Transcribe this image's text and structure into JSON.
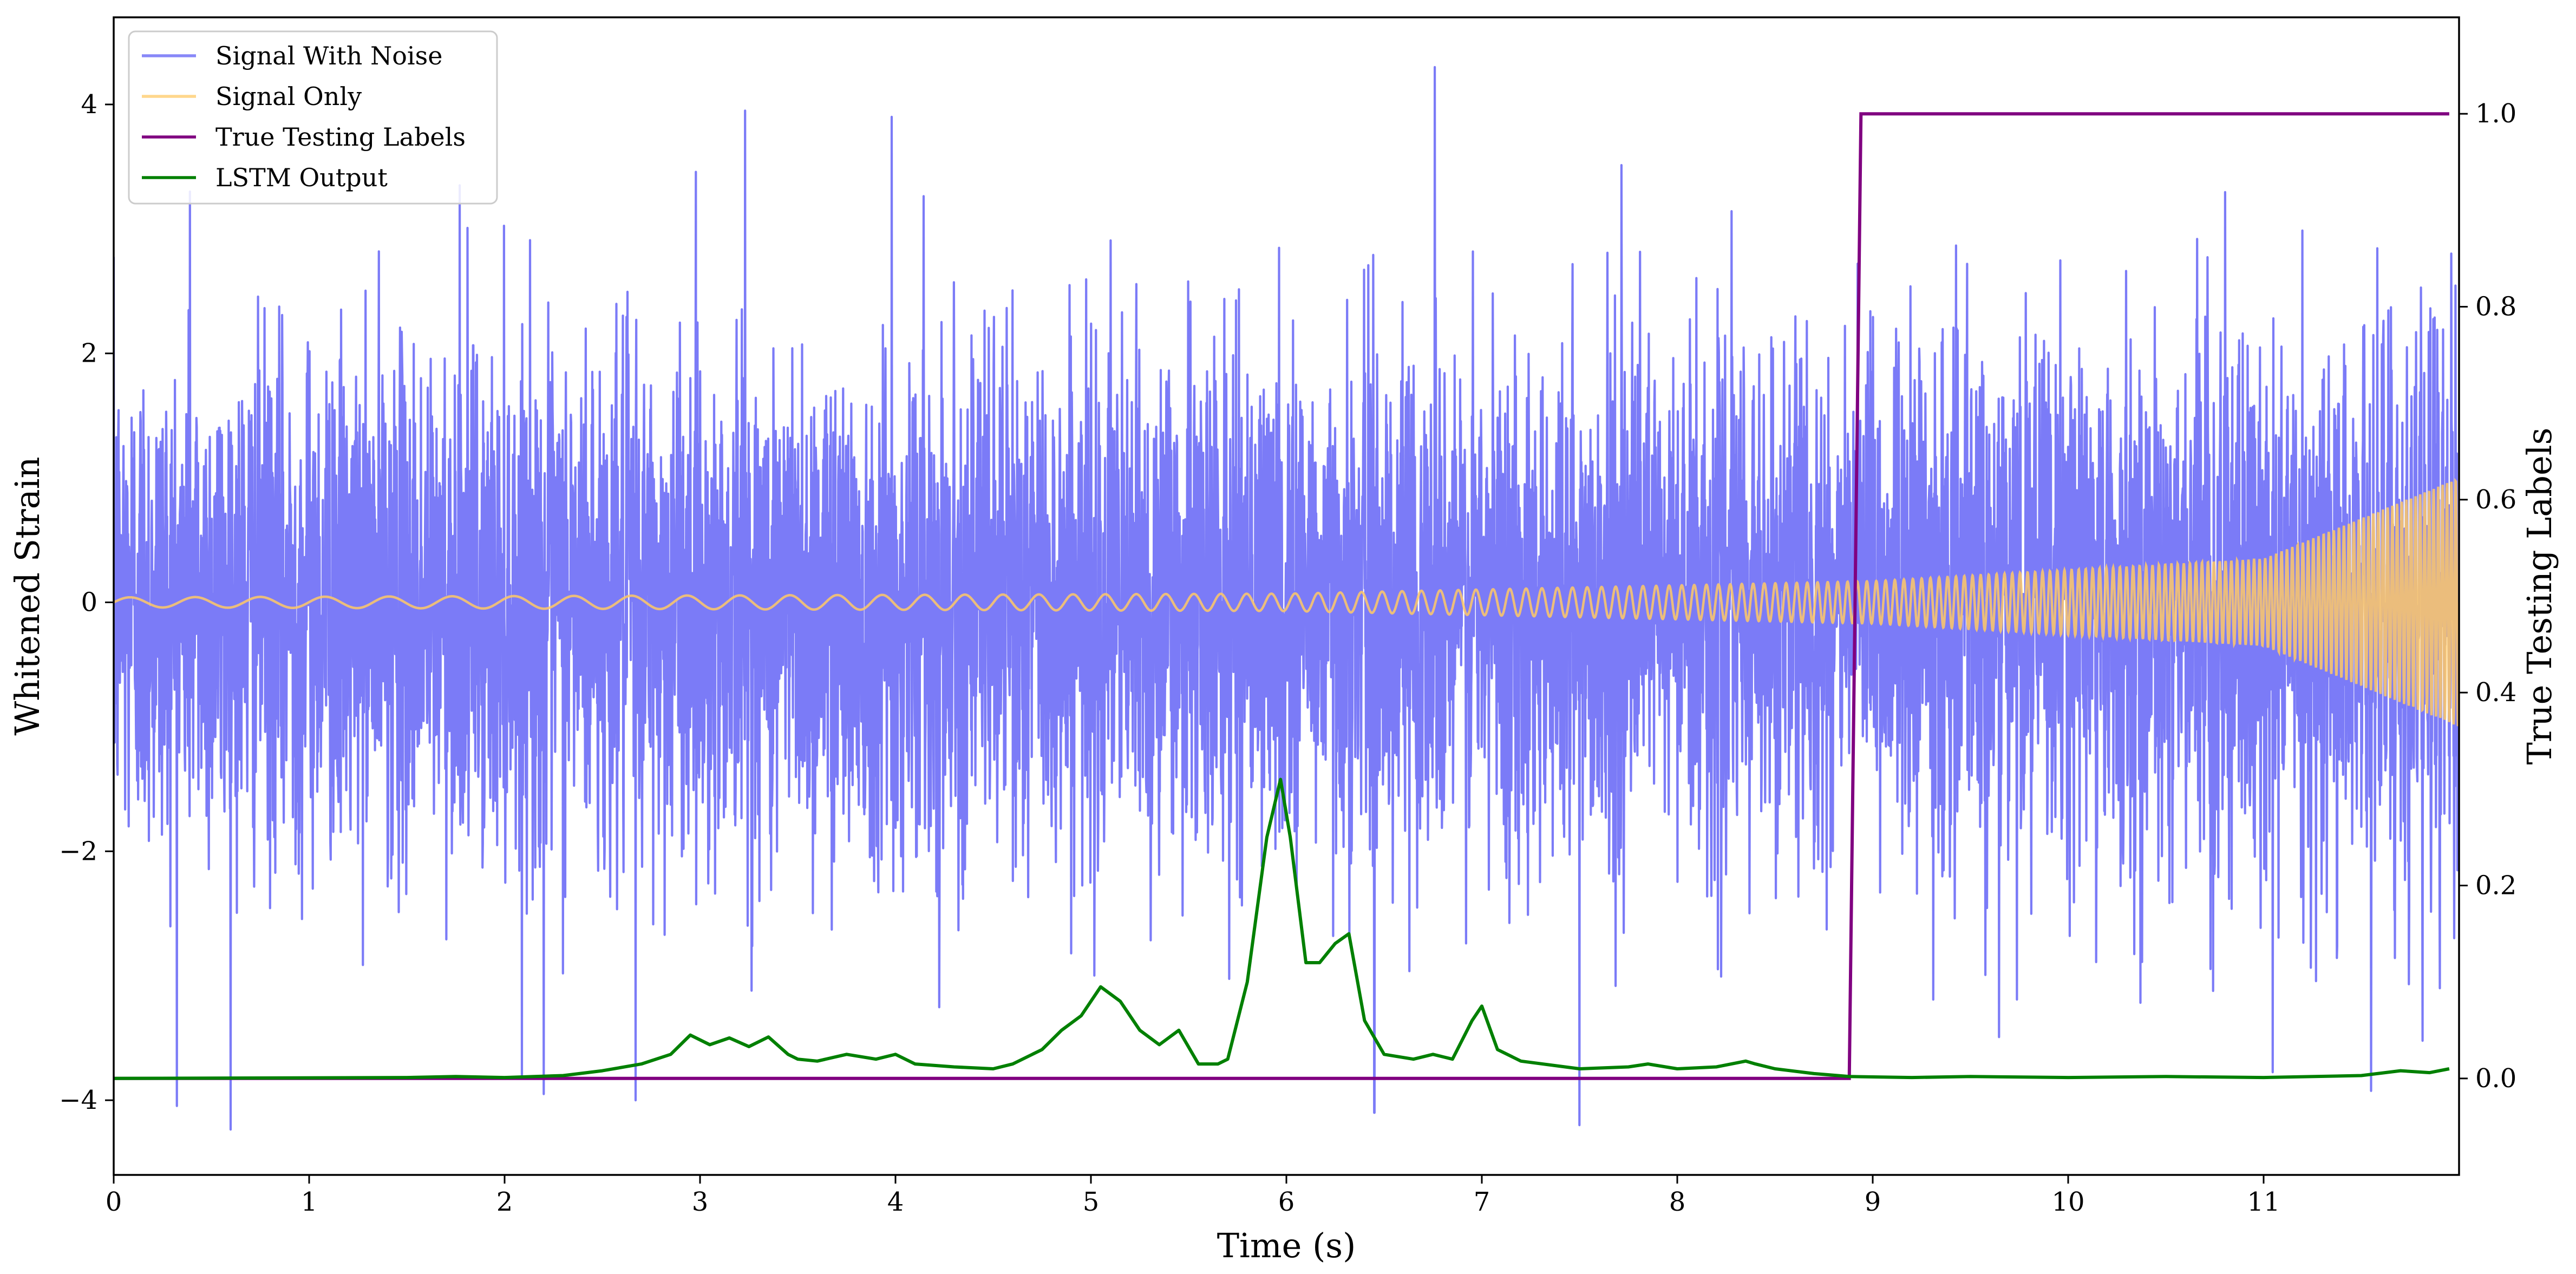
{
  "chart_data": {
    "type": "line",
    "xlabel": "Time (s)",
    "ylabel": "Whitened Strain",
    "y2label": "True Testing Labels",
    "xlim": [
      0,
      12
    ],
    "ylim": [
      -4.6,
      4.7
    ],
    "y2lim": [
      -0.1,
      1.1
    ],
    "x_ticks": [
      0,
      1,
      2,
      3,
      4,
      5,
      6,
      7,
      8,
      9,
      10,
      11
    ],
    "y_ticks": [
      -4,
      -2,
      0,
      2,
      4
    ],
    "y2_ticks": [
      0.0,
      0.2,
      0.4,
      0.6,
      0.8,
      1.0
    ],
    "grid": false,
    "legend_position": "upper left",
    "series": [
      {
        "name": "Signal With Noise",
        "axis": "left",
        "color": "#7b7bf7",
        "description_values": {
          "noise_std": 1.0,
          "notable_peaks": [
            [
              0.39,
              3.3
            ],
            [
              1.77,
              3.35
            ],
            [
              3.23,
              3.95
            ],
            [
              3.98,
              3.9
            ],
            [
              6.76,
              4.3
            ],
            [
              2.2,
              -3.95
            ],
            [
              2.67,
              -4.0
            ],
            [
              6.45,
              -4.1
            ],
            [
              7.5,
              -4.2
            ]
          ]
        }
      },
      {
        "name": "Signal Only",
        "axis": "left",
        "color": "#ffc966",
        "chirp": {
          "amplitude_points": [
            [
              0,
              0.04
            ],
            [
              6,
              0.07
            ],
            [
              9,
              0.17
            ],
            [
              11,
              0.35
            ],
            [
              12,
              1.0
            ]
          ],
          "frequency_start_hz": 3.0,
          "frequency_end_hz": 45.0
        }
      },
      {
        "name": "True Testing Labels",
        "axis": "right",
        "color": "#800080",
        "x": [
          0,
          8.88,
          8.94,
          11.95
        ],
        "values": [
          0,
          0,
          1,
          1
        ]
      },
      {
        "name": "LSTM Output",
        "axis": "right",
        "color": "#008000",
        "x": [
          0,
          1.5,
          1.75,
          2.0,
          2.3,
          2.5,
          2.7,
          2.85,
          2.95,
          3.05,
          3.15,
          3.25,
          3.35,
          3.45,
          3.5,
          3.6,
          3.75,
          3.9,
          4.0,
          4.1,
          4.3,
          4.5,
          4.6,
          4.75,
          4.85,
          4.95,
          5.05,
          5.15,
          5.25,
          5.35,
          5.45,
          5.55,
          5.65,
          5.7,
          5.8,
          5.9,
          5.97,
          6.02,
          6.1,
          6.17,
          6.25,
          6.32,
          6.4,
          6.5,
          6.65,
          6.75,
          6.85,
          6.95,
          7.0,
          7.08,
          7.2,
          7.5,
          7.75,
          7.85,
          8.0,
          8.2,
          8.35,
          8.4,
          8.5,
          8.7,
          8.88,
          9.2,
          9.5,
          10.0,
          10.5,
          11.0,
          11.5,
          11.7,
          11.85,
          11.95
        ],
        "values": [
          0.0,
          0.001,
          0.002,
          0.001,
          0.003,
          0.008,
          0.015,
          0.025,
          0.045,
          0.035,
          0.042,
          0.033,
          0.043,
          0.025,
          0.02,
          0.018,
          0.025,
          0.02,
          0.025,
          0.015,
          0.012,
          0.01,
          0.015,
          0.03,
          0.05,
          0.065,
          0.095,
          0.08,
          0.05,
          0.035,
          0.05,
          0.015,
          0.015,
          0.02,
          0.1,
          0.25,
          0.31,
          0.25,
          0.12,
          0.12,
          0.14,
          0.15,
          0.06,
          0.025,
          0.02,
          0.025,
          0.02,
          0.06,
          0.075,
          0.03,
          0.018,
          0.01,
          0.012,
          0.015,
          0.01,
          0.012,
          0.018,
          0.015,
          0.01,
          0.005,
          0.002,
          0.001,
          0.002,
          0.001,
          0.002,
          0.001,
          0.003,
          0.008,
          0.006,
          0.01
        ]
      }
    ]
  }
}
